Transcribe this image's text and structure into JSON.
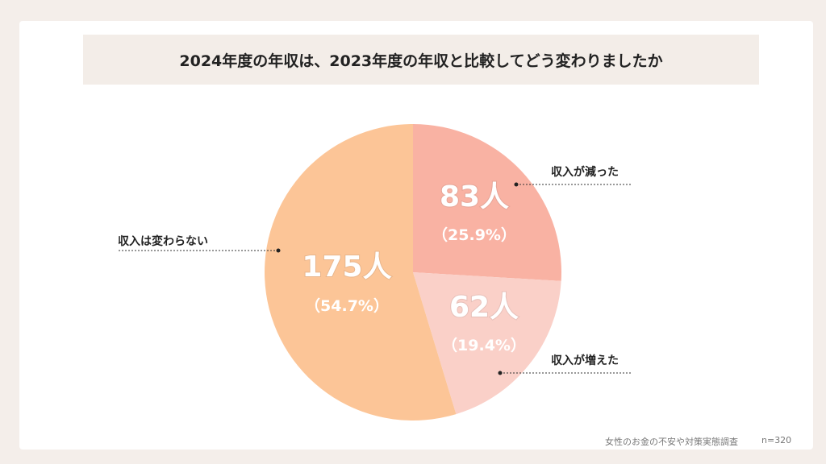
{
  "title": "2024年度の年収は、2023年度の年収と比較してどう変わりましたか",
  "footer": {
    "source": "女性のお金の不安や対策実態調査",
    "n": "n=320"
  },
  "chart_data": {
    "type": "pie",
    "start": "top",
    "direction": "clockwise",
    "slices": [
      {
        "label": "収入が減った",
        "value": 83,
        "value_text": "83人",
        "percent_text": "（25.9%）",
        "color": "#f9b2a3"
      },
      {
        "label": "収入が増えた",
        "value": 62,
        "value_text": "62人",
        "percent_text": "（19.4%）",
        "color": "#fad0c8"
      },
      {
        "label": "収入は変わらない",
        "value": 175,
        "value_text": "175人",
        "percent_text": "（54.7%）",
        "color": "#fcc597"
      }
    ]
  }
}
